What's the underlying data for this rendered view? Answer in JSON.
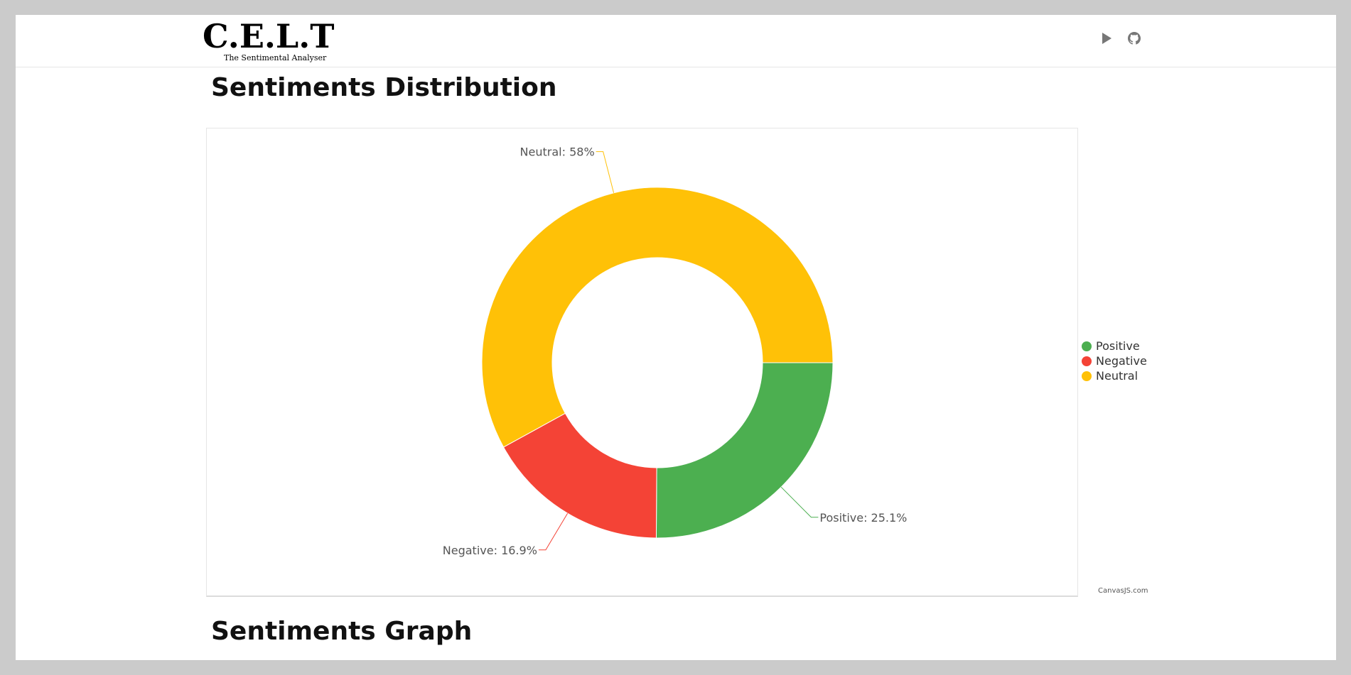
{
  "logo": {
    "title": "C.E.L.T",
    "subtitle": "The Sentimental Analyser"
  },
  "nav": {
    "icons": [
      "play-icon",
      "github-icon"
    ]
  },
  "sections": {
    "distribution_title": "Sentiments Distribution",
    "graph_title": "Sentiments Graph"
  },
  "credit": "CanvasJS.com",
  "colors": {
    "positive": "#4CAF50",
    "negative": "#F44336",
    "neutral": "#FFC107"
  },
  "chart_data": {
    "type": "pie",
    "variant": "doughnut",
    "title": "",
    "slices": [
      {
        "name": "Positive",
        "value": 25.1,
        "label": "Positive: 25.1%",
        "color": "#4CAF50"
      },
      {
        "name": "Negative",
        "value": 16.9,
        "label": "Negative: 16.9%",
        "color": "#F44336"
      },
      {
        "name": "Neutral",
        "value": 58,
        "label": "Neutral: 58%",
        "color": "#FFC107"
      }
    ],
    "legend": {
      "position": "right",
      "entries": [
        "Positive",
        "Negative",
        "Neutral"
      ]
    }
  }
}
